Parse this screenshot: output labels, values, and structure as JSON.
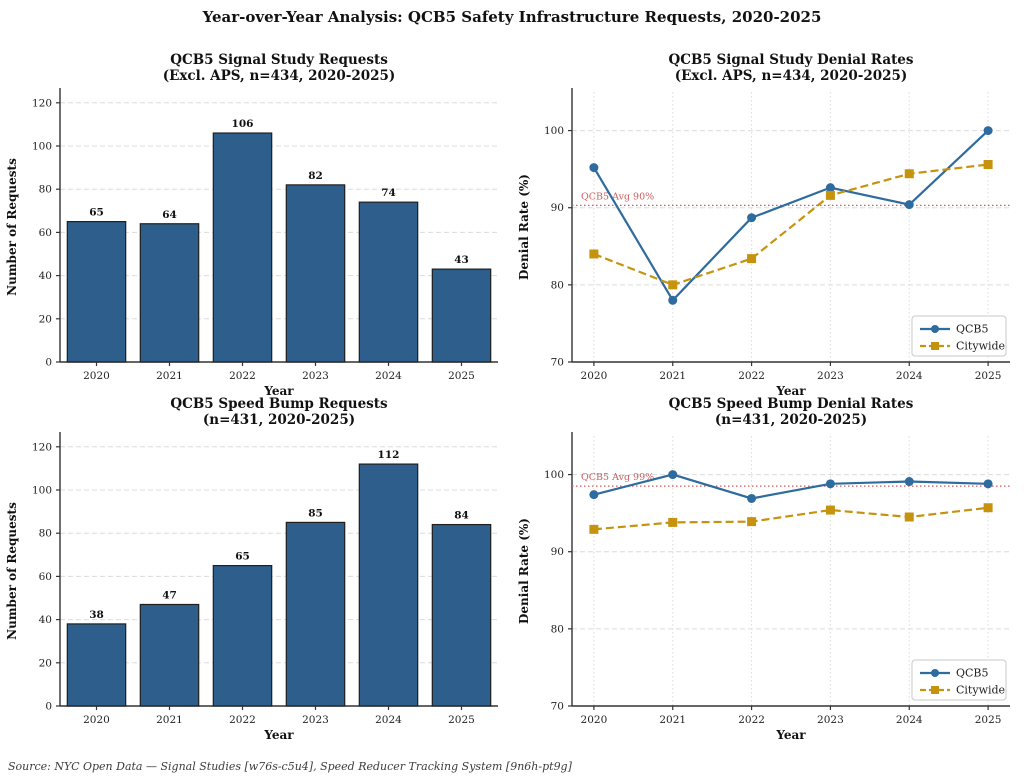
{
  "page_title": "Year-over-Year Analysis: QCB5 Safety Infrastructure Requests, 2020-2025",
  "footer": {
    "source_text": "Source: NYC Open Data — Signal Studies [w76s-c5u4], Speed Reducer Tracking System [9n6h-pt9g]"
  },
  "colors": {
    "bar_fill": "#2e5f8c",
    "bar_edge": "#1f1f1f",
    "qcb5_line": "#2e6b9e",
    "citywide_line": "#c6930f",
    "avg_line": "#cd5c5c",
    "grid": "#dcdcdc",
    "spine": "#333333"
  },
  "chart_data": [
    {
      "id": "signal-study-requests",
      "type": "bar",
      "title": "QCB5 Signal Study Requests",
      "subtitle": "(Excl. APS, n=434, 2020-2025)",
      "xlabel": "Year",
      "ylabel": "Number of Requests",
      "categories": [
        "2020",
        "2021",
        "2022",
        "2023",
        "2024",
        "2025"
      ],
      "values": [
        65,
        64,
        106,
        82,
        74,
        43
      ],
      "ylim": [
        0,
        125
      ],
      "yticks": [
        0,
        20,
        40,
        60,
        80,
        100,
        120
      ],
      "grid": "horizontal-dashed",
      "bar_color": "#2e5f8c"
    },
    {
      "id": "signal-study-denial-rates",
      "type": "line",
      "title": "QCB5 Signal Study Denial Rates",
      "subtitle": "(Excl. APS, n=434, 2020-2025)",
      "xlabel": "Year",
      "ylabel": "Denial Rate (%)",
      "categories": [
        "2020",
        "2021",
        "2022",
        "2023",
        "2024",
        "2025"
      ],
      "series": [
        {
          "name": "QCB5",
          "values": [
            95.2,
            78.0,
            88.7,
            92.6,
            90.4,
            100.0
          ],
          "color": "#2e6b9e",
          "style": "solid",
          "marker": "circle"
        },
        {
          "name": "Citywide",
          "values": [
            84.0,
            80.0,
            83.4,
            91.6,
            94.4,
            95.6
          ],
          "color": "#c6930f",
          "style": "dashed",
          "marker": "square"
        }
      ],
      "avg_line": {
        "value": 90.3,
        "label": "QCB5 Avg 90%",
        "color": "#cd5c5c"
      },
      "ylim": [
        70,
        105
      ],
      "yticks": [
        70,
        80,
        90,
        100
      ],
      "grid": "both",
      "legend": {
        "position": "lower right",
        "entries": [
          "QCB5",
          "Citywide"
        ]
      }
    },
    {
      "id": "speed-bump-requests",
      "type": "bar",
      "title": "QCB5 Speed Bump Requests",
      "subtitle": "(n=431, 2020-2025)",
      "xlabel": "Year",
      "ylabel": "Number of Requests",
      "categories": [
        "2020",
        "2021",
        "2022",
        "2023",
        "2024",
        "2025"
      ],
      "values": [
        38,
        47,
        65,
        85,
        112,
        84
      ],
      "ylim": [
        0,
        125
      ],
      "yticks": [
        0,
        20,
        40,
        60,
        80,
        100,
        120
      ],
      "grid": "horizontal-dashed",
      "bar_color": "#2e5f8c"
    },
    {
      "id": "speed-bump-denial-rates",
      "type": "line",
      "title": "QCB5 Speed Bump Denial Rates",
      "subtitle": "(n=431, 2020-2025)",
      "xlabel": "Year",
      "ylabel": "Denial Rate (%)",
      "categories": [
        "2020",
        "2021",
        "2022",
        "2023",
        "2024",
        "2025"
      ],
      "series": [
        {
          "name": "QCB5",
          "values": [
            97.4,
            100.0,
            96.9,
            98.8,
            99.1,
            98.8
          ],
          "color": "#2e6b9e",
          "style": "solid",
          "marker": "circle"
        },
        {
          "name": "Citywide",
          "values": [
            92.9,
            93.8,
            93.9,
            95.4,
            94.5,
            95.7
          ],
          "color": "#c6930f",
          "style": "dashed",
          "marker": "square"
        }
      ],
      "avg_line": {
        "value": 98.5,
        "label": "QCB5 Avg 99%",
        "color": "#cd5c5c"
      },
      "ylim": [
        70,
        105
      ],
      "yticks": [
        70,
        80,
        90,
        100
      ],
      "grid": "both",
      "legend": {
        "position": "lower right",
        "entries": [
          "QCB5",
          "Citywide"
        ]
      }
    }
  ]
}
